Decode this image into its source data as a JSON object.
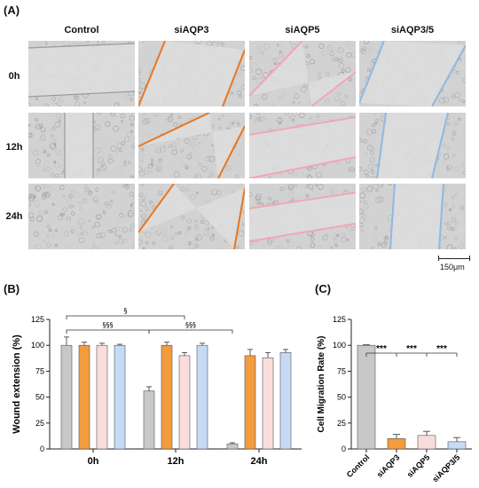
{
  "figure": {
    "panel_a_label": "(A)",
    "panel_b_label": "(B)",
    "panel_c_label": "(C)",
    "columns": [
      "Control",
      "siAQP3",
      "siAQP5",
      "siAQP3/5"
    ],
    "rows": [
      "0h",
      "12h",
      "24h"
    ],
    "scale_bar": "150μm",
    "colors": {
      "control": "#c8c8c8",
      "siAQP3": "#f39c3d",
      "siAQP5": "#fadcdc",
      "siAQP3_5": "#c6daf5",
      "siAQP3_line": "#e87722",
      "siAQP5_line": "#f4a6b3",
      "siAQP3_5_line": "#8fb8e3"
    }
  },
  "chart_data": [
    {
      "type": "bar",
      "ylabel": "Wound extension (%)",
      "xlabel": "",
      "ylim": [
        0,
        125
      ],
      "yticks": [
        0,
        25,
        50,
        75,
        100,
        125
      ],
      "categories": [
        "0h",
        "12h",
        "24h"
      ],
      "series": [
        {
          "name": "Control",
          "values": [
            100,
            56,
            5
          ],
          "errors": [
            8,
            4,
            1
          ]
        },
        {
          "name": "siAQP3",
          "values": [
            100,
            100,
            90
          ],
          "errors": [
            3,
            3,
            6
          ]
        },
        {
          "name": "siAQP5",
          "values": [
            100,
            90,
            88
          ],
          "errors": [
            2,
            3,
            5
          ]
        },
        {
          "name": "siAQP3/5",
          "values": [
            100,
            100,
            93
          ],
          "errors": [
            1,
            2,
            3
          ]
        }
      ],
      "annotations": [
        "§",
        "§§§",
        "§§§"
      ]
    },
    {
      "type": "bar",
      "ylabel": "Cell Migration Rate (%)",
      "xlabel": "",
      "ylim": [
        0,
        125
      ],
      "yticks": [
        0,
        25,
        50,
        75,
        100,
        125
      ],
      "categories": [
        "Control",
        "siAQP3",
        "siAQP5",
        "siAQP3/5"
      ],
      "values": [
        100,
        10,
        13,
        7
      ],
      "errors": [
        0.5,
        4,
        4,
        4
      ],
      "annotations": [
        "***",
        "***",
        "***"
      ]
    }
  ]
}
